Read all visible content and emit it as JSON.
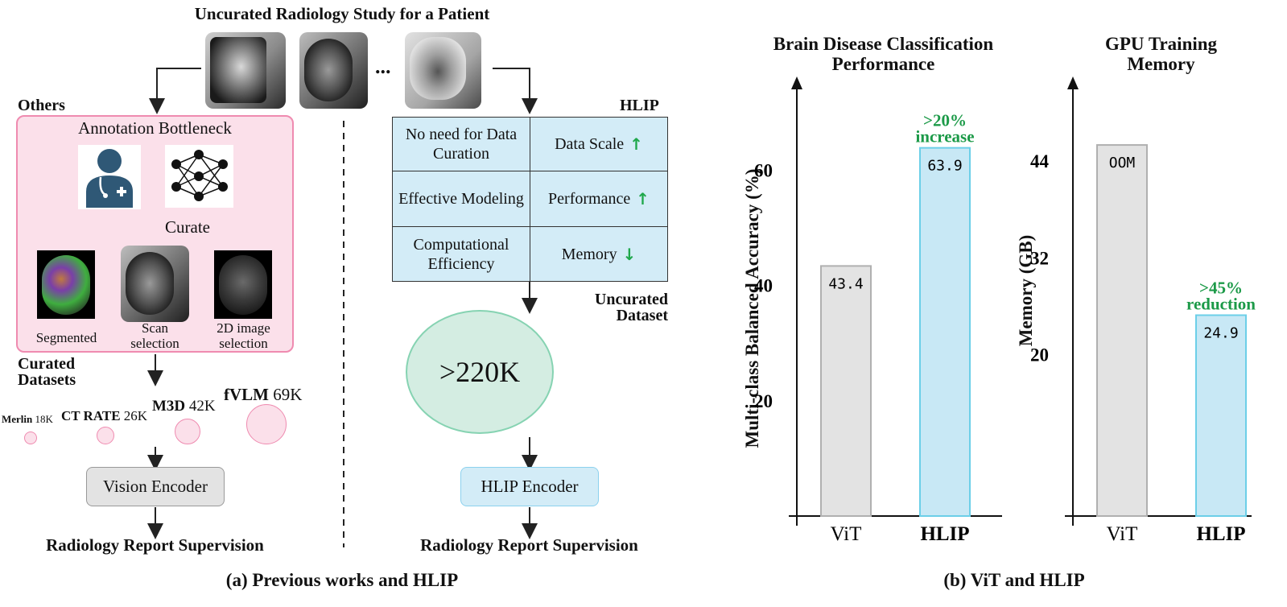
{
  "left": {
    "study_title": "Uncurated Radiology Study for a Patient",
    "ellipsis": "...",
    "others_label": "Others",
    "hlip_label": "HLIP",
    "bottleneck_title": "Annotation Bottleneck",
    "curate_label": "Curate",
    "segmented_label": "Segmented",
    "scan_selection_label": "Scan selection",
    "image_selection_label": "2D image selection",
    "curated_datasets_label": "Curated Datasets",
    "datasets": [
      {
        "name": "Merlin",
        "size": "18K"
      },
      {
        "name": "CT RATE",
        "size": "26K"
      },
      {
        "name": "M3D",
        "size": "42K"
      },
      {
        "name": "fVLM",
        "size": "69K"
      }
    ],
    "vision_encoder": "Vision Encoder",
    "report_left": "Radiology Report Supervision",
    "table": [
      {
        "left": "No need for Data Curation",
        "right": "Data Scale",
        "arrow": "up"
      },
      {
        "left": "Effective Modeling",
        "right": "Performance",
        "arrow": "up"
      },
      {
        "left": "Computational Efficiency",
        "right": "Memory",
        "arrow": "down"
      }
    ],
    "uncurated_dataset_label": "Uncurated Dataset",
    "dataset_size": ">220K",
    "hlip_encoder": "HLIP Encoder",
    "report_right": "Radiology Report Supervision",
    "caption": "(a) Previous works and HLIP"
  },
  "chart_data": [
    {
      "type": "bar",
      "title": "Brain Disease Classification Performance",
      "ylabel": "Multi-class Balanced Accuracy (%)",
      "categories": [
        "ViT",
        "HLIP"
      ],
      "values": [
        43.4,
        63.9
      ],
      "value_labels": [
        "43.4",
        "63.9"
      ],
      "yticks": [
        20,
        40,
        60
      ],
      "ylim": [
        0,
        70
      ],
      "annotation": ">20% increase",
      "colors": [
        "#e3e3e3",
        "#c8e8f5"
      ]
    },
    {
      "type": "bar",
      "title": "GPU Training Memory",
      "ylabel": "Memory (GB)",
      "categories": [
        "ViT",
        "HLIP"
      ],
      "values": [
        46,
        24.9
      ],
      "value_labels": [
        "OOM",
        "24.9"
      ],
      "yticks": [
        20,
        32,
        44
      ],
      "ylim": [
        0,
        50
      ],
      "annotation": ">45% reduction",
      "colors": [
        "#e3e3e3",
        "#c8e8f5"
      ]
    }
  ],
  "right_caption": "(b) ViT and HLIP",
  "colors": {
    "pink_fill": "#fbe0ea",
    "pink_border": "#ef8bb0",
    "blue_fill": "#d3ecf7",
    "green_fill": "#d4ede2",
    "green_border": "#86d3b2",
    "accent_green": "#1c9a48"
  }
}
